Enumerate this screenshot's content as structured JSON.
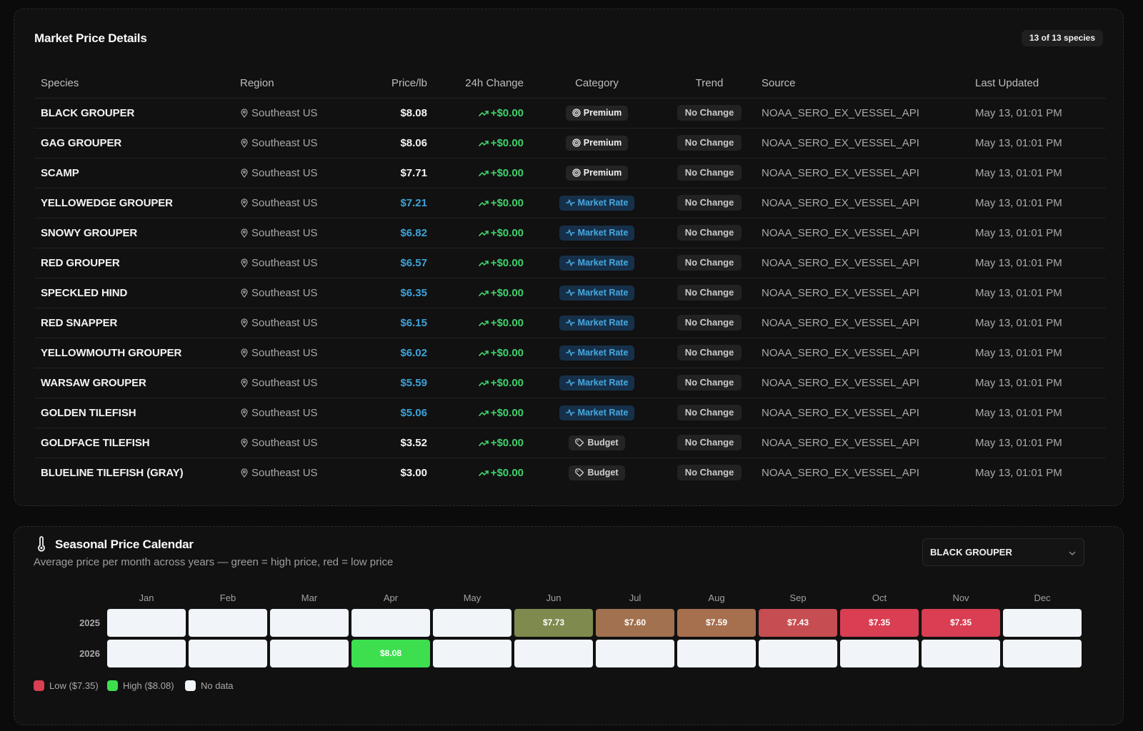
{
  "market": {
    "title": "Market Price Details",
    "count_badge": "13 of 13 species",
    "columns": [
      "Species",
      "Region",
      "Price/lb",
      "24h Change",
      "Category",
      "Trend",
      "Source",
      "Last Updated"
    ],
    "rows": [
      {
        "species": "BLACK GROUPER",
        "region": "Southeast US",
        "price": "$8.08",
        "price_color": "white",
        "change": "+$0.00",
        "category": "Premium",
        "category_kind": "premium",
        "trend": "No Change",
        "source": "NOAA_SERO_EX_VESSEL_API",
        "updated": "May 13, 01:01 PM"
      },
      {
        "species": "GAG GROUPER",
        "region": "Southeast US",
        "price": "$8.06",
        "price_color": "white",
        "change": "+$0.00",
        "category": "Premium",
        "category_kind": "premium",
        "trend": "No Change",
        "source": "NOAA_SERO_EX_VESSEL_API",
        "updated": "May 13, 01:01 PM"
      },
      {
        "species": "SCAMP",
        "region": "Southeast US",
        "price": "$7.71",
        "price_color": "white",
        "change": "+$0.00",
        "category": "Premium",
        "category_kind": "premium",
        "trend": "No Change",
        "source": "NOAA_SERO_EX_VESSEL_API",
        "updated": "May 13, 01:01 PM"
      },
      {
        "species": "YELLOWEDGE GROUPER",
        "region": "Southeast US",
        "price": "$7.21",
        "price_color": "blue",
        "change": "+$0.00",
        "category": "Market Rate",
        "category_kind": "market",
        "trend": "No Change",
        "source": "NOAA_SERO_EX_VESSEL_API",
        "updated": "May 13, 01:01 PM"
      },
      {
        "species": "SNOWY GROUPER",
        "region": "Southeast US",
        "price": "$6.82",
        "price_color": "blue",
        "change": "+$0.00",
        "category": "Market Rate",
        "category_kind": "market",
        "trend": "No Change",
        "source": "NOAA_SERO_EX_VESSEL_API",
        "updated": "May 13, 01:01 PM"
      },
      {
        "species": "RED GROUPER",
        "region": "Southeast US",
        "price": "$6.57",
        "price_color": "blue",
        "change": "+$0.00",
        "category": "Market Rate",
        "category_kind": "market",
        "trend": "No Change",
        "source": "NOAA_SERO_EX_VESSEL_API",
        "updated": "May 13, 01:01 PM"
      },
      {
        "species": "SPECKLED HIND",
        "region": "Southeast US",
        "price": "$6.35",
        "price_color": "blue",
        "change": "+$0.00",
        "category": "Market Rate",
        "category_kind": "market",
        "trend": "No Change",
        "source": "NOAA_SERO_EX_VESSEL_API",
        "updated": "May 13, 01:01 PM"
      },
      {
        "species": "RED SNAPPER",
        "region": "Southeast US",
        "price": "$6.15",
        "price_color": "blue",
        "change": "+$0.00",
        "category": "Market Rate",
        "category_kind": "market",
        "trend": "No Change",
        "source": "NOAA_SERO_EX_VESSEL_API",
        "updated": "May 13, 01:01 PM"
      },
      {
        "species": "YELLOWMOUTH GROUPER",
        "region": "Southeast US",
        "price": "$6.02",
        "price_color": "blue",
        "change": "+$0.00",
        "category": "Market Rate",
        "category_kind": "market",
        "trend": "No Change",
        "source": "NOAA_SERO_EX_VESSEL_API",
        "updated": "May 13, 01:01 PM"
      },
      {
        "species": "WARSAW GROUPER",
        "region": "Southeast US",
        "price": "$5.59",
        "price_color": "blue",
        "change": "+$0.00",
        "category": "Market Rate",
        "category_kind": "market",
        "trend": "No Change",
        "source": "NOAA_SERO_EX_VESSEL_API",
        "updated": "May 13, 01:01 PM"
      },
      {
        "species": "GOLDEN TILEFISH",
        "region": "Southeast US",
        "price": "$5.06",
        "price_color": "blue",
        "change": "+$0.00",
        "category": "Market Rate",
        "category_kind": "market",
        "trend": "No Change",
        "source": "NOAA_SERO_EX_VESSEL_API",
        "updated": "May 13, 01:01 PM"
      },
      {
        "species": "GOLDFACE TILEFISH",
        "region": "Southeast US",
        "price": "$3.52",
        "price_color": "white",
        "change": "+$0.00",
        "category": "Budget",
        "category_kind": "budget",
        "trend": "No Change",
        "source": "NOAA_SERO_EX_VESSEL_API",
        "updated": "May 13, 01:01 PM"
      },
      {
        "species": "BLUELINE TILEFISH (GRAY)",
        "region": "Southeast US",
        "price": "$3.00",
        "price_color": "white",
        "change": "+$0.00",
        "category": "Budget",
        "category_kind": "budget",
        "trend": "No Change",
        "source": "NOAA_SERO_EX_VESSEL_API",
        "updated": "May 13, 01:01 PM"
      }
    ]
  },
  "seasonal": {
    "icon": "thermometer-icon",
    "title": "Seasonal Price Calendar",
    "subtitle": "Average price per month across years — green = high price, red = low price",
    "species_select": "BLACK GROUPER",
    "months": [
      "Jan",
      "Feb",
      "Mar",
      "Apr",
      "May",
      "Jun",
      "Jul",
      "Aug",
      "Sep",
      "Oct",
      "Nov",
      "Dec"
    ],
    "years": [
      {
        "year": "2025",
        "cells": [
          null,
          null,
          null,
          null,
          null,
          {
            "label": "$7.73",
            "color": "#7f8a4e"
          },
          {
            "label": "$7.60",
            "color": "#a2714f"
          },
          {
            "label": "$7.59",
            "color": "#a6704f"
          },
          {
            "label": "$7.43",
            "color": "#c64d51"
          },
          {
            "label": "$7.35",
            "color": "#d93e52"
          },
          {
            "label": "$7.35",
            "color": "#d93e52"
          },
          null
        ]
      },
      {
        "year": "2026",
        "cells": [
          null,
          null,
          null,
          {
            "label": "$8.08",
            "color": "#3ddf4f"
          },
          null,
          null,
          null,
          null,
          null,
          null,
          null,
          null
        ]
      }
    ],
    "legend": {
      "low": "Low ($7.35)",
      "low_color": "#d93e52",
      "high": "High ($8.08)",
      "high_color": "#3ddf4f",
      "nodata": "No data",
      "nodata_color": "#f1f4f8"
    }
  },
  "colors": {
    "accent_blue": "#3ea2d8",
    "positive_green": "#3ed16a"
  }
}
